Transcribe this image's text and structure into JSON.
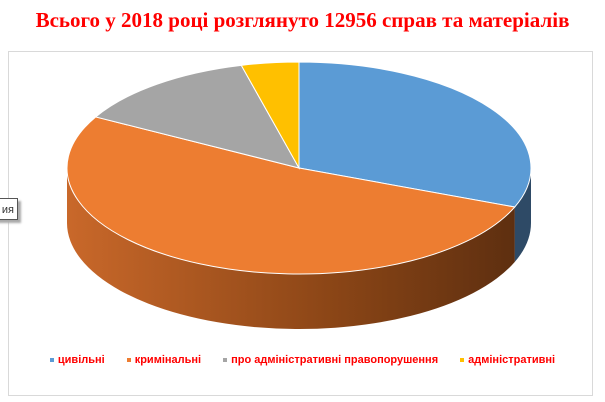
{
  "chart_data": {
    "type": "pie",
    "style": "3d",
    "title": "Всього у 2018 році розглянуто 12956 справ та матеріалів",
    "categories": [
      "цивільні",
      "кримінальні",
      "про адміністративні правопорушення",
      "адміністративні"
    ],
    "values": [
      31,
      52,
      13,
      4
    ],
    "unit": "%",
    "colors": [
      "#5b9bd5",
      "#ed7d31",
      "#a5a5a5",
      "#ffc000"
    ],
    "side_colors": [
      "#2e4a66",
      "#8a4516",
      "#6b6b6b",
      "#9a7500"
    ],
    "legend_position": "bottom"
  },
  "tooltip": {
    "text": "ия"
  }
}
